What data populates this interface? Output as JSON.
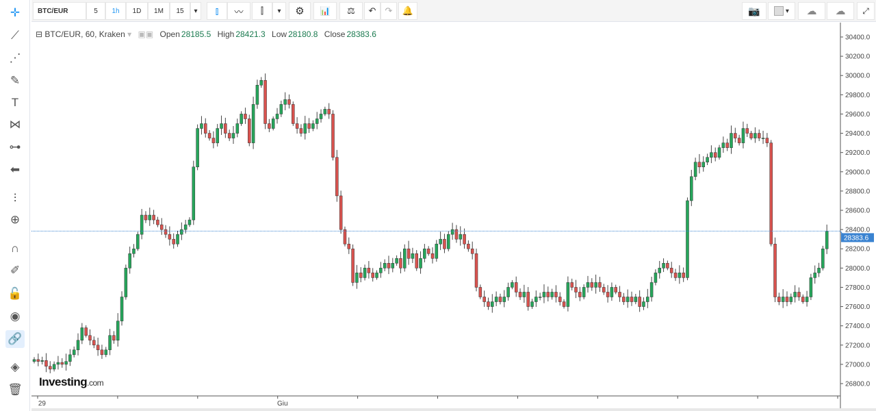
{
  "toolbar": {
    "symbol": "BTC/EUR",
    "intervals": [
      "5",
      "1h",
      "1D",
      "1M",
      "15"
    ],
    "selected_interval": "1h"
  },
  "left_tools": [
    "crosshair-icon",
    "trend-line-icon",
    "fib-icon",
    "brush-icon",
    "text-icon",
    "pattern-icon",
    "measure-icon",
    "back-arrow-icon",
    "indicators-icon",
    "zoom-in-icon",
    "magnet-icon",
    "pencil-lock-icon",
    "lock-icon",
    "eye-icon",
    "link-icon",
    "layers-icon",
    "trash-icon"
  ],
  "legend": {
    "title": "BTC/EUR, 60, Kraken",
    "open_label": "Open",
    "open": "28185.5",
    "high_label": "High",
    "high": "28421.3",
    "low_label": "Low",
    "low": "28180.8",
    "close_label": "Close",
    "close": "28383.6"
  },
  "logo": {
    "name": "Investing",
    "suffix": ".com"
  },
  "colors": {
    "up": "#26a65b",
    "down": "#d9534f",
    "accent": "#2196f3",
    "last_price": "#3a83d1"
  },
  "chart_data": {
    "type": "candlestick",
    "ylim": [
      26700,
      30500
    ],
    "yticks": [
      "30400.0",
      "30200.0",
      "30000.0",
      "29800.0",
      "29600.0",
      "29400.0",
      "29200.0",
      "29000.0",
      "28800.0",
      "28600.0",
      "28400.0",
      "28200.0",
      "28000.0",
      "27800.0",
      "27600.0",
      "27400.0",
      "27200.0",
      "27000.0",
      "26800.0"
    ],
    "xtick_labels": [
      {
        "index": 1,
        "label": "29"
      },
      {
        "index": 61,
        "label": "Giu"
      }
    ],
    "last_price": "28383.6",
    "first_open": 27030,
    "closes": [
      27050,
      27030,
      27040,
      26980,
      26950,
      27000,
      27020,
      27000,
      27030,
      27100,
      27150,
      27250,
      27380,
      27300,
      27250,
      27200,
      27150,
      27100,
      27150,
      27300,
      27250,
      27450,
      27700,
      28000,
      28150,
      28200,
      28350,
      28550,
      28500,
      28550,
      28500,
      28450,
      28400,
      28350,
      28300,
      28250,
      28350,
      28400,
      28450,
      28500,
      29050,
      29450,
      29500,
      29400,
      29350,
      29300,
      29450,
      29500,
      29400,
      29350,
      29400,
      29500,
      29600,
      29550,
      29300,
      29700,
      29900,
      29950,
      29500,
      29450,
      29550,
      29600,
      29700,
      29750,
      29700,
      29500,
      29450,
      29400,
      29500,
      29450,
      29500,
      29550,
      29600,
      29650,
      29600,
      29150,
      28750,
      28400,
      28250,
      28200,
      27850,
      27950,
      27900,
      28000,
      27950,
      27900,
      27950,
      28000,
      28050,
      28000,
      28050,
      28100,
      28000,
      28200,
      28100,
      28150,
      28000,
      28100,
      28200,
      28150,
      28100,
      28250,
      28300,
      28200,
      28350,
      28400,
      28300,
      28350,
      28250,
      28200,
      28150,
      27800,
      27700,
      27650,
      27600,
      27650,
      27700,
      27650,
      27700,
      27800,
      27850,
      27750,
      27700,
      27750,
      27600,
      27650,
      27700,
      27700,
      27750,
      27700,
      27750,
      27700,
      27650,
      27600,
      27850,
      27800,
      27750,
      27700,
      27800,
      27850,
      27800,
      27850,
      27800,
      27750,
      27700,
      27800,
      27750,
      27700,
      27650,
      27700,
      27650,
      27700,
      27600,
      27650,
      27700,
      27850,
      27950,
      28000,
      28050,
      28000,
      27950,
      27900,
      27950,
      27900,
      28700,
      28950,
      29100,
      29050,
      29100,
      29150,
      29200,
      29150,
      29250,
      29300,
      29250,
      29400,
      29350,
      29300,
      29450,
      29400,
      29350,
      29400,
      29350,
      29350,
      29300,
      28250,
      27700,
      27650,
      27700,
      27650,
      27700,
      27750,
      27700,
      27650,
      27700,
      27900,
      27950,
      28000,
      28200,
      28383.6
    ]
  }
}
